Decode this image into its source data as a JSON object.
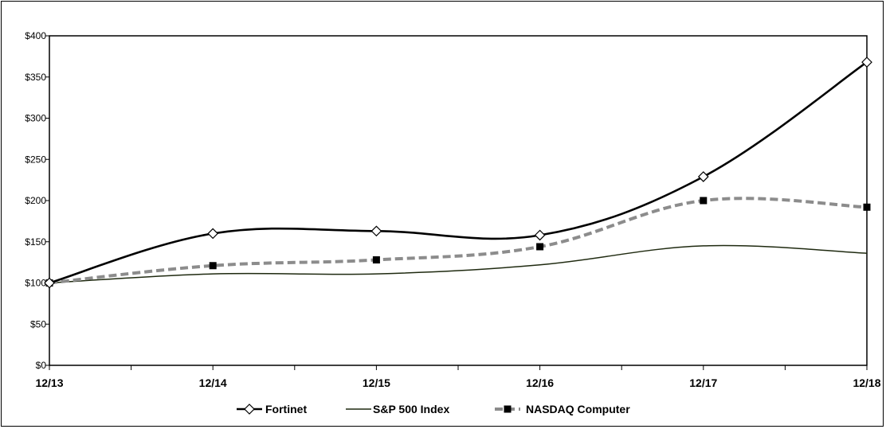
{
  "chart_data": {
    "type": "line",
    "categories": [
      "12/13",
      "12/14",
      "12/15",
      "12/16",
      "12/17",
      "12/18"
    ],
    "series": [
      {
        "name": "Fortinet",
        "values": [
          100,
          160,
          163,
          158,
          229,
          368
        ],
        "color": "#000000",
        "marker": "open-diamond",
        "style": "solid-thick"
      },
      {
        "name": "S&P 500 Index",
        "values": [
          100,
          111,
          111,
          122,
          145,
          136
        ],
        "color": "#1f2a10",
        "marker": "none",
        "style": "solid-thin"
      },
      {
        "name": "NASDAQ Computer",
        "values": [
          100,
          121,
          128,
          144,
          200,
          192
        ],
        "color": "#8c8c8c",
        "marker": "filled-square",
        "style": "dashed"
      }
    ],
    "y_ticks": [
      "$0",
      "$50",
      "$100",
      "$150",
      "$200",
      "$250",
      "$300",
      "$350",
      "$400"
    ],
    "ylim": [
      0,
      400
    ],
    "grid": false,
    "legend_position": "bottom",
    "title": "",
    "xlabel": "",
    "ylabel": ""
  }
}
